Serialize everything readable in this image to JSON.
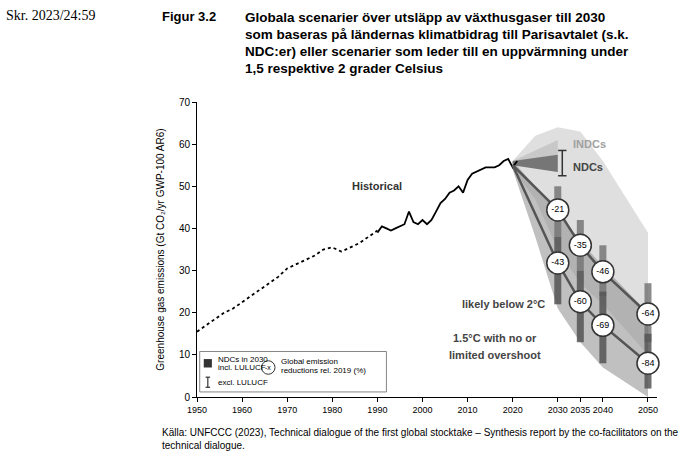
{
  "header": {
    "document": "Skr. 2023/24:59",
    "figure": "Figur 3.2",
    "title_lines": [
      "Globala scenarier över utsläpp av växthusgaser till 2030",
      "som baseras på ländernas klimatbidrag till Parisavtalet (s.k.",
      "NDC:er) eller scenarier som leder till en uppvärmning under",
      "1,5 respektive 2 grader Celsius"
    ]
  },
  "source": "Källa: UNFCCC (2023), Technical dialogue of the first global stocktake – Synthesis report by the co-facilitators on the technical dialogue.",
  "chart_data": {
    "type": "line",
    "y_label": "Greenhouse gas emissions (Gt CO₂/yr GWP-100 AR6)",
    "xlim": [
      1950,
      2052
    ],
    "xticks": [
      1950,
      1960,
      1970,
      1980,
      1990,
      2000,
      2010,
      2020,
      2030,
      2035,
      2040,
      2050
    ],
    "ylim": [
      0,
      70
    ],
    "yticks": [
      0,
      10,
      20,
      30,
      40,
      50,
      60,
      70
    ],
    "grid": false,
    "series": [
      {
        "type": "area",
        "color": "#c4c4c4",
        "x": [
          2020,
          2025,
          2030,
          2035,
          2040,
          2050
        ],
        "lower": [
          54,
          47,
          35,
          27,
          22,
          10
        ],
        "upper": [
          56,
          62,
          64,
          63,
          56,
          39
        ]
      },
      {
        "type": "area",
        "color": "#8c8c8c",
        "x": [
          2020,
          2025,
          2030,
          2035,
          2040,
          2050
        ],
        "lower": [
          54,
          38,
          21,
          13,
          7,
          0
        ],
        "upper": [
          56,
          50,
          44,
          37,
          31,
          20
        ]
      },
      {
        "type": "area",
        "color": "#b4b4b4",
        "x": [
          2020,
          2030
        ],
        "lower": [
          55,
          53.4
        ],
        "upper": [
          56,
          61
        ]
      },
      {
        "type": "area",
        "color": "#333333",
        "x": [
          2020,
          2030
        ],
        "lower": [
          55,
          53.4
        ],
        "upper": [
          56,
          57.5
        ]
      },
      {
        "type": "range_bar",
        "color": "#777777",
        "x": [
          2030,
          2035,
          2040,
          2050
        ],
        "low": [
          38,
          30,
          24,
          13
        ],
        "high": [
          50,
          42,
          36,
          27
        ]
      },
      {
        "type": "range_bar",
        "color": "#555555",
        "x": [
          2030,
          2035,
          2040,
          2050
        ],
        "low": [
          22,
          13,
          8,
          2
        ],
        "high": [
          38,
          30,
          25,
          15
        ]
      },
      {
        "type": "error_bar",
        "color": "#333333",
        "x": [
          2031
        ],
        "low": [
          52.5
        ],
        "high": [
          58.5
        ]
      },
      {
        "type": "line",
        "color": "#000000",
        "line_style": "dotted",
        "x": [
          1950,
          1952,
          1954,
          1956,
          1958,
          1960,
          1962,
          1964,
          1966,
          1968,
          1970,
          1972,
          1974,
          1976,
          1978,
          1980,
          1982,
          1984,
          1986,
          1988,
          1990
        ],
        "values": [
          15.5,
          17,
          18.5,
          20,
          21,
          22.5,
          24,
          25.5,
          27,
          28.5,
          30.5,
          31.5,
          32.5,
          33.5,
          35,
          35.5,
          34.5,
          35.5,
          36.5,
          38,
          39.5
        ]
      },
      {
        "type": "line",
        "color": "#000000",
        "line_style": "solid",
        "x": [
          1990,
          1991,
          1992,
          1993,
          1994,
          1995,
          1996,
          1997,
          1998,
          1999,
          2000,
          2001,
          2002,
          2003,
          2004,
          2005,
          2006,
          2007,
          2008,
          2009,
          2010,
          2011,
          2012,
          2013,
          2014,
          2015,
          2016,
          2017,
          2018,
          2019,
          2020,
          2021
        ],
        "values": [
          39,
          40.5,
          40,
          39.5,
          40,
          40.5,
          41,
          44,
          41.5,
          41,
          42,
          41,
          42,
          44,
          46,
          47,
          48.5,
          49,
          50,
          48.5,
          51.5,
          53,
          53.5,
          54,
          54.5,
          54.5,
          54.5,
          55,
          56,
          56.5,
          54.5,
          56
        ]
      },
      {
        "type": "line",
        "color": "#555555",
        "line_style": "solid",
        "x": [
          2020,
          2030,
          2035,
          2040,
          2050
        ],
        "values": [
          55,
          44.4,
          36,
          29.7,
          19.7
        ],
        "reductions": [
          null,
          -21,
          -35,
          -46,
          -64
        ]
      },
      {
        "type": "line",
        "color": "#555555",
        "line_style": "solid",
        "x": [
          2020,
          2030,
          2035,
          2040,
          2050
        ],
        "values": [
          55,
          31.8,
          22.6,
          17,
          8
        ],
        "reductions": [
          null,
          -43,
          -60,
          -69,
          -84
        ]
      }
    ],
    "annotations": [
      {
        "text": "Historical",
        "x": 1990,
        "y": 50,
        "color": "#333333"
      },
      {
        "text": "INDCs",
        "x": 2033,
        "y": 60,
        "color": "#a0a0a0"
      },
      {
        "text": "NDCs",
        "x": 2033,
        "y": 54.5,
        "color": "#444444"
      },
      {
        "text": "likely below 2°C",
        "x": 2018,
        "y": 22,
        "color": "#444444"
      },
      {
        "text": "1.5°C with no or",
        "x": 2016,
        "y": 14,
        "color": "#444444"
      },
      {
        "text": "limited overshoot",
        "x": 2016,
        "y": 10,
        "color": "#444444"
      }
    ],
    "key": {
      "ndc_incl": [
        "NDCs in 2030",
        "incl. LULUCF"
      ],
      "ndc_excl": "excl. LULUCF",
      "reduction": [
        "Global emission",
        "reductions rel. 2019 (%)"
      ],
      "reduction_symbol": "-x"
    }
  }
}
